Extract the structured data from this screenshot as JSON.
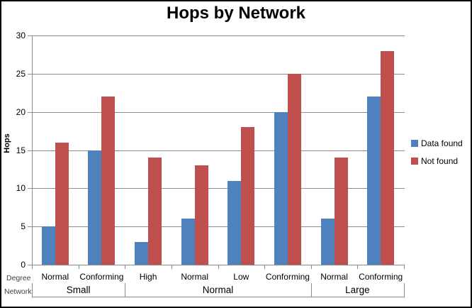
{
  "chart_data": {
    "type": "bar",
    "title": "Hops by Network",
    "ylabel": "Hops",
    "xlabel_rows": {
      "degree": "Degree",
      "network": "Network"
    },
    "ylim": [
      0,
      30
    ],
    "yticks": [
      0,
      5,
      10,
      15,
      20,
      25,
      30
    ],
    "grid": true,
    "legend_position": "right",
    "categories": [
      "Normal",
      "Conforming",
      "High",
      "Normal",
      "Low",
      "Conforming",
      "Normal",
      "Conforming"
    ],
    "group_row": [
      {
        "label": "Small",
        "span": 2
      },
      {
        "label": "Normal",
        "span": 4
      },
      {
        "label": "Large",
        "span": 2
      }
    ],
    "series": [
      {
        "name": "Data found",
        "color": "#4F81BD",
        "values": [
          5,
          15,
          3,
          6,
          11,
          20,
          6,
          22
        ]
      },
      {
        "name": "Not found",
        "color": "#C0504D",
        "values": [
          16,
          22,
          14,
          13,
          18,
          25,
          14,
          28
        ]
      }
    ]
  },
  "style": {
    "gridline_color": "#8C8C8C",
    "axis_color": "#8C8C8C",
    "text_color": "#000000",
    "border_color": "#000000",
    "background": "#FFFFFF"
  }
}
